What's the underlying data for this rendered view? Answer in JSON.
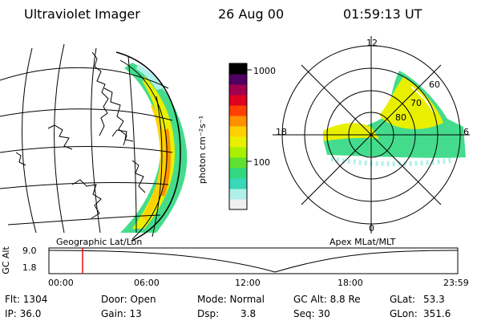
{
  "header": {
    "instrument": "Ultraviolet Imager",
    "date": "26 Aug 00",
    "time": "01:59:13 UT"
  },
  "colorbar": {
    "unit_label": "photon cm⁻²s⁻¹",
    "ticks": [
      "1000",
      "100"
    ],
    "scale": "log"
  },
  "panels": {
    "left_label": "Geographic Lat/Lon",
    "right_label": "Apex MLat/MLT"
  },
  "polar": {
    "mlt_labels": [
      "12",
      "18",
      "6",
      "0"
    ],
    "lat_labels": [
      "60",
      "70",
      "80"
    ]
  },
  "orbit": {
    "ylabel": "GC Alt",
    "yticks": [
      "9.0",
      "1.8"
    ],
    "xticks": [
      "00:00",
      "06:00",
      "12:00",
      "18:00",
      "23:59"
    ],
    "marker_time": "01:59"
  },
  "footer": {
    "flt": "Flt: 1304",
    "ip": "IP: 36.0",
    "door": "Door: Open",
    "gain": "Gain: 13",
    "mode": "Mode: Normal",
    "dsp_label": "Dsp:",
    "dsp_value": "3.8",
    "gc_alt": "GC Alt: 8.8 Re",
    "seq": "Seq: 30",
    "glat_label": "GLat:",
    "glat_value": "53.3",
    "glon_label": "GLon:",
    "glon_value": "351.6"
  },
  "colors": {
    "scale": [
      "#f0f0f0",
      "#b0f0e8",
      "#38d8b8",
      "#30d880",
      "#60e030",
      "#a8f000",
      "#e8f000",
      "#ffd000",
      "#ff9000",
      "#ff4000",
      "#e00020",
      "#a00050",
      "#500060",
      "#000000"
    ],
    "marker": "#e01010"
  }
}
